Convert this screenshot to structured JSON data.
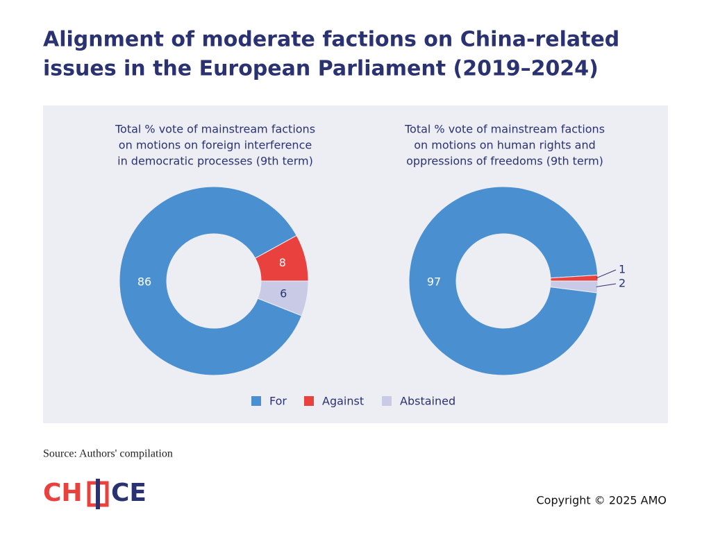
{
  "title": [
    "Alignment of moderate factions on China-related",
    "issues in the European Parliament (2019–2024)"
  ],
  "chart_data": [
    {
      "type": "pie",
      "donut": true,
      "subtitle": [
        "Total % vote of mainstream factions",
        "on motions on foreign interference",
        "in democratic processes (9th term)"
      ],
      "categories": [
        "For",
        "Against",
        "Abstained"
      ],
      "values": [
        86,
        8,
        6
      ],
      "colors": [
        "#4a90d0",
        "#e8413e",
        "#c9cbe6"
      ]
    },
    {
      "type": "pie",
      "donut": true,
      "subtitle": [
        "Total % vote of mainstream factions",
        "on motions on human rights and",
        "oppressions of freedoms (9th term)"
      ],
      "categories": [
        "For",
        "Against",
        "Abstained"
      ],
      "values": [
        97,
        1,
        2
      ],
      "colors": [
        "#4a90d0",
        "#e8413e",
        "#c9cbe6"
      ]
    }
  ],
  "source": "Source: Authors' compilation",
  "logo": [
    "CH",
    "CE"
  ],
  "copyright": "Copyright © 2025 AMO"
}
